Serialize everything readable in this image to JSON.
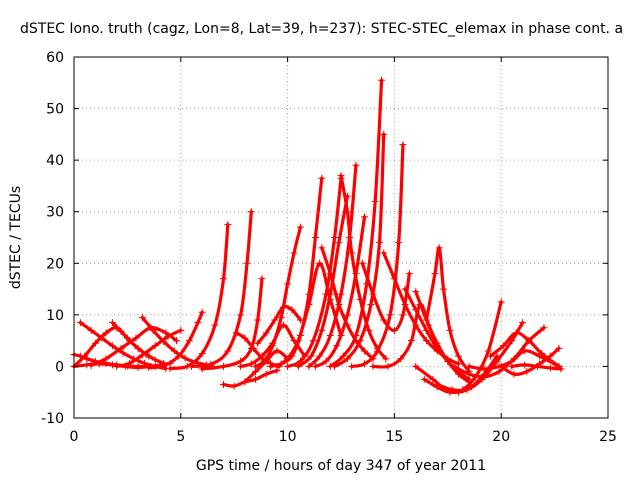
{
  "chart_data": {
    "type": "scatter",
    "title": "dSTEC Iono. truth (cagz, Lon=8, Lat=39, h=237): STEC-STEC_elemax in phase cont. a",
    "xlabel": "GPS time / hours of day 347 of year 2011",
    "ylabel": "dSTEC  / TECUs",
    "xlim": [
      0,
      25
    ],
    "ylim": [
      -10,
      60
    ],
    "x_ticks": [
      "0",
      "5",
      "10",
      "15",
      "20",
      "25"
    ],
    "y_ticks": [
      "-10",
      "0",
      "10",
      "20",
      "30",
      "40",
      "50",
      "60"
    ],
    "grid": true,
    "marker": "+",
    "color": "#ff0000",
    "series": [
      {
        "x": [
          0.0,
          0.3,
          0.6,
          1.0,
          1.5,
          2.0,
          2.5,
          3.0,
          3.5
        ],
        "y": [
          2.3,
          2.0,
          1.5,
          1.0,
          0.6,
          0.3,
          0.1,
          0.0,
          0.0
        ]
      },
      {
        "x": [
          0.0,
          0.6,
          1.2,
          1.8,
          2.4,
          3.0,
          3.6,
          4.2,
          4.5
        ],
        "y": [
          0.0,
          0.3,
          0.5,
          0.3,
          0.0,
          -0.2,
          0.0,
          0.4,
          0.6
        ]
      },
      {
        "x": [
          0.0,
          0.5,
          1.0,
          1.5,
          2.0,
          2.5,
          3.0,
          3.5
        ],
        "y": [
          0.0,
          2.0,
          4.5,
          6.5,
          7.5,
          5.5,
          3.5,
          2.0
        ]
      },
      {
        "x": [
          0.3,
          0.8,
          1.3,
          1.8,
          2.3,
          2.8,
          3.3,
          3.8,
          4.3
        ],
        "y": [
          8.5,
          7.0,
          5.5,
          4.0,
          2.6,
          1.5,
          0.6,
          0.0,
          -0.4
        ]
      },
      {
        "x": [
          0.8,
          1.5,
          2.2,
          2.9,
          3.6,
          4.3,
          4.8
        ],
        "y": [
          0.2,
          1.5,
          3.5,
          5.5,
          7.5,
          6.5,
          5.0
        ]
      },
      {
        "x": [
          1.8,
          2.2,
          2.6,
          3.0,
          3.4,
          3.8,
          4.2
        ],
        "y": [
          8.5,
          6.8,
          5.0,
          3.5,
          2.3,
          1.3,
          0.6
        ]
      },
      {
        "x": [
          2.0,
          2.6,
          3.2,
          3.8,
          4.4,
          5.0
        ],
        "y": [
          0.0,
          0.6,
          2.2,
          4.0,
          5.8,
          7.0
        ]
      },
      {
        "x": [
          3.2,
          3.7,
          4.2,
          4.7,
          5.2,
          5.7,
          6.2,
          6.5
        ],
        "y": [
          9.5,
          7.0,
          4.8,
          3.0,
          1.6,
          0.8,
          0.3,
          0.0
        ]
      },
      {
        "x": [
          3.5,
          4.2,
          4.9,
          5.4,
          5.8,
          6.0
        ],
        "y": [
          -0.2,
          0.1,
          2.0,
          5.0,
          8.5,
          10.5
        ]
      },
      {
        "x": [
          4.5,
          5.3,
          6.0,
          6.6,
          7.0,
          7.2
        ],
        "y": [
          -0.4,
          0.0,
          2.5,
          8.0,
          17.0,
          27.5
        ]
      },
      {
        "x": [
          5.5,
          6.4,
          7.2,
          7.8,
          8.1,
          8.3
        ],
        "y": [
          0.0,
          0.4,
          3.0,
          10.0,
          20.0,
          30.0
        ]
      },
      {
        "x": [
          6.0,
          7.0,
          7.8,
          8.3,
          8.6,
          8.8
        ],
        "y": [
          -0.5,
          0.0,
          1.0,
          3.5,
          9.0,
          17.0
        ]
      },
      {
        "x": [
          7.6,
          8.0,
          8.4,
          8.8,
          9.2,
          9.6
        ],
        "y": [
          6.5,
          5.5,
          3.5,
          1.6,
          0.6,
          0.0
        ]
      },
      {
        "x": [
          7.0,
          7.5,
          8.0,
          8.5,
          9.0,
          9.5
        ],
        "y": [
          -3.5,
          -3.8,
          -3.0,
          -2.5,
          -1.5,
          -0.8
        ]
      },
      {
        "x": [
          8.0,
          8.5,
          9.0,
          9.5,
          10.0
        ],
        "y": [
          -3.0,
          -1.0,
          1.0,
          3.0,
          1.5
        ]
      },
      {
        "x": [
          7.8,
          8.3,
          8.8,
          9.3,
          9.8,
          10.3,
          10.8
        ],
        "y": [
          0.0,
          0.5,
          2.0,
          4.5,
          8.0,
          5.0,
          2.0
        ]
      },
      {
        "x": [
          8.5,
          8.9,
          9.3,
          9.7,
          10.0,
          10.3,
          10.6
        ],
        "y": [
          0.0,
          1.0,
          4.0,
          9.5,
          16.0,
          22.0,
          27.0
        ]
      },
      {
        "x": [
          8.6,
          9.0,
          9.4,
          9.8,
          10.2,
          10.6
        ],
        "y": [
          4.5,
          6.5,
          9.0,
          11.5,
          11.0,
          9.0
        ]
      },
      {
        "x": [
          9.2,
          9.7,
          10.2,
          10.6,
          11.0,
          11.3,
          11.6
        ],
        "y": [
          0.0,
          0.5,
          2.0,
          6.0,
          14.0,
          25.0,
          36.5
        ]
      },
      {
        "x": [
          9.5,
          10.0,
          10.5,
          11.0,
          11.5,
          12.0,
          12.5
        ],
        "y": [
          0.0,
          1.5,
          5.0,
          12.0,
          20.0,
          13.0,
          6.0
        ]
      },
      {
        "x": [
          10.0,
          10.6,
          11.2,
          11.8,
          12.2,
          12.5
        ],
        "y": [
          0.0,
          1.0,
          5.0,
          14.0,
          25.0,
          36.5
        ]
      },
      {
        "x": [
          10.5,
          11.1,
          11.6,
          12.0,
          12.4,
          12.8
        ],
        "y": [
          0.0,
          2.0,
          7.0,
          14.0,
          24.0,
          33.0
        ]
      },
      {
        "x": [
          11.0,
          11.5,
          12.0,
          12.5,
          12.9,
          13.2
        ],
        "y": [
          0.0,
          2.0,
          6.0,
          14.0,
          25.0,
          39.0
        ]
      },
      {
        "x": [
          11.3,
          11.8,
          12.3,
          12.8,
          13.2,
          13.6
        ],
        "y": [
          0.0,
          1.0,
          4.0,
          10.0,
          18.0,
          29.0
        ]
      },
      {
        "x": [
          11.6,
          12.0,
          12.4,
          12.8,
          13.2,
          13.6,
          14.0
        ],
        "y": [
          23.0,
          18.0,
          12.0,
          8.0,
          5.0,
          3.0,
          1.5
        ]
      },
      {
        "x": [
          12.0,
          12.6,
          13.2,
          13.7,
          14.1,
          14.4
        ],
        "y": [
          0.0,
          2.0,
          6.0,
          16.0,
          32.0,
          55.5
        ]
      },
      {
        "x": [
          12.2,
          12.8,
          13.4,
          13.9,
          14.3,
          14.5
        ],
        "y": [
          0.0,
          1.5,
          5.0,
          12.0,
          24.0,
          45.0
        ]
      },
      {
        "x": [
          12.5,
          12.8,
          13.0,
          13.4,
          13.8,
          14.2,
          14.6
        ],
        "y": [
          37.0,
          30.0,
          22.0,
          13.0,
          7.0,
          3.5,
          1.5
        ]
      },
      {
        "x": [
          13.0,
          13.6,
          14.2,
          14.8,
          15.2,
          15.4
        ],
        "y": [
          0.0,
          0.5,
          3.0,
          10.0,
          24.0,
          43.0
        ]
      },
      {
        "x": [
          13.5,
          14.0,
          14.5,
          15.0,
          15.4,
          15.7
        ],
        "y": [
          20.0,
          14.0,
          9.0,
          7.0,
          10.0,
          18.0
        ]
      },
      {
        "x": [
          14.0,
          14.7,
          15.3,
          15.8,
          16.2,
          16.6,
          17.0
        ],
        "y": [
          0.0,
          0.0,
          1.5,
          5.0,
          12.0,
          8.0,
          4.0
        ]
      },
      {
        "x": [
          14.5,
          15.0,
          15.5,
          16.0,
          16.5,
          17.0,
          17.5,
          18.0
        ],
        "y": [
          22.0,
          17.0,
          12.0,
          8.0,
          5.0,
          3.0,
          1.5,
          0.5
        ]
      },
      {
        "x": [
          15.5,
          16.0,
          16.5,
          17.0,
          17.5,
          18.0,
          18.5
        ],
        "y": [
          15.0,
          11.0,
          7.0,
          3.5,
          1.0,
          -1.0,
          -2.5
        ]
      },
      {
        "x": [
          16.0,
          16.5,
          17.0,
          17.5,
          18.0,
          18.5
        ],
        "y": [
          14.5,
          9.0,
          4.5,
          1.0,
          -1.5,
          -3.0
        ]
      },
      {
        "x": [
          16.5,
          16.9,
          17.1,
          17.3,
          17.6,
          18.0,
          18.5
        ],
        "y": [
          9.0,
          18.0,
          23.0,
          15.0,
          7.0,
          2.0,
          -1.0
        ]
      },
      {
        "x": [
          16.0,
          16.8,
          17.4,
          18.0,
          18.6,
          19.2,
          19.8
        ],
        "y": [
          0.0,
          -2.5,
          -4.5,
          -5.0,
          -4.0,
          -1.5,
          2.0
        ]
      },
      {
        "x": [
          16.4,
          17.0,
          17.6,
          18.2,
          18.8,
          19.4,
          20.0
        ],
        "y": [
          -2.5,
          -4.0,
          -5.0,
          -4.5,
          -2.0,
          3.0,
          12.5
        ]
      },
      {
        "x": [
          17.0,
          17.7,
          18.4,
          19.1,
          19.8,
          20.5,
          21.0
        ],
        "y": [
          -3.5,
          -4.5,
          -4.5,
          -2.5,
          1.0,
          5.0,
          8.5
        ]
      },
      {
        "x": [
          17.8,
          18.5,
          19.2,
          19.9,
          20.6,
          21.3,
          22.0
        ],
        "y": [
          0.0,
          -1.5,
          -2.0,
          -1.0,
          1.5,
          5.0,
          7.5
        ]
      },
      {
        "x": [
          18.5,
          19.2,
          19.9,
          20.5,
          21.1,
          21.8,
          22.7
        ],
        "y": [
          0.0,
          -0.5,
          0.0,
          1.0,
          3.0,
          2.0,
          0.0
        ]
      },
      {
        "x": [
          19.5,
          20.1,
          20.7,
          21.3,
          21.9,
          22.7
        ],
        "y": [
          2.0,
          4.0,
          6.5,
          5.0,
          2.5,
          0.0
        ]
      },
      {
        "x": [
          20.0,
          20.6,
          21.2,
          21.8,
          22.3,
          22.7
        ],
        "y": [
          0.0,
          -1.5,
          -1.0,
          0.5,
          2.0,
          3.5
        ]
      },
      {
        "x": [
          20.5,
          21.1,
          21.7,
          22.3,
          22.8
        ],
        "y": [
          0.0,
          0.3,
          0.0,
          -0.3,
          -0.5
        ]
      }
    ]
  }
}
